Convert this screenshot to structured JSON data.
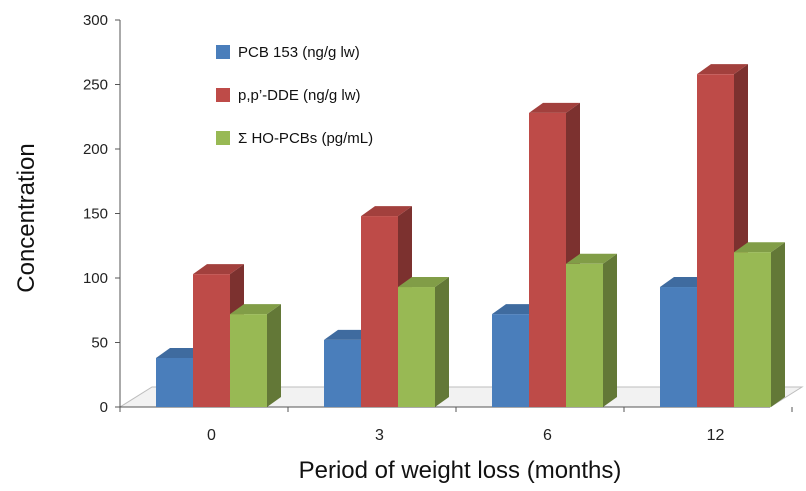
{
  "chart_data": {
    "type": "bar",
    "title": "",
    "xlabel": "Period of weight loss (months)",
    "ylabel": "Concentration",
    "categories": [
      "0",
      "3",
      "6",
      "12"
    ],
    "ylim": [
      0,
      300
    ],
    "yticks": [
      0,
      50,
      100,
      150,
      200,
      250,
      300
    ],
    "grid": false,
    "legend_position": "top-left inside",
    "style": "3d-column",
    "series": [
      {
        "name": "PCB 153 (ng/g lw)",
        "values": [
          38,
          52,
          72,
          93
        ],
        "color": "#4a7ebb"
      },
      {
        "name": "p,p’-DDE (ng/g lw)",
        "values": [
          103,
          148,
          228,
          258
        ],
        "color": "#be4b48"
      },
      {
        "name": "Σ HO-PCBs (pg/mL)",
        "values": [
          72,
          93,
          111,
          120
        ],
        "color": "#98b954"
      }
    ]
  }
}
